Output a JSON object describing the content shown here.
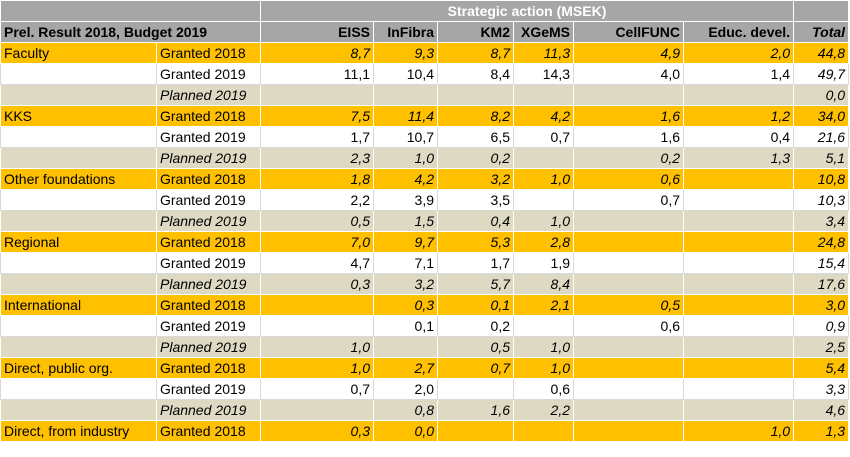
{
  "header": {
    "title": "Prel. Result 2018, Budget 2019",
    "group": "Strategic action (MSEK)",
    "columns": [
      "EISS",
      "InFibra",
      "KM2",
      "XGeMS",
      "CellFUNC",
      "Educ. devel.",
      "Total"
    ]
  },
  "rows": [
    {
      "cat": "Faculty",
      "type": "Granted 2018",
      "vals": [
        "8,7",
        "9,3",
        "8,7",
        "11,3",
        "4,9",
        "2,0"
      ],
      "total": "44,8"
    },
    {
      "cat": "",
      "type": "Granted 2019",
      "vals": [
        "11,1",
        "10,4",
        "8,4",
        "14,3",
        "4,0",
        "1,4"
      ],
      "total": "49,7"
    },
    {
      "cat": "",
      "type": "Planned 2019",
      "vals": [
        "",
        "",
        "",
        "",
        "",
        ""
      ],
      "total": "0,0"
    },
    {
      "cat": "KKS",
      "type": "Granted 2018",
      "vals": [
        "7,5",
        "11,4",
        "8,2",
        "4,2",
        "1,6",
        "1,2"
      ],
      "total": "34,0"
    },
    {
      "cat": "",
      "type": "Granted 2019",
      "vals": [
        "1,7",
        "10,7",
        "6,5",
        "0,7",
        "1,6",
        "0,4"
      ],
      "total": "21,6"
    },
    {
      "cat": "",
      "type": "Planned 2019",
      "vals": [
        "2,3",
        "1,0",
        "0,2",
        "",
        "0,2",
        "1,3"
      ],
      "total": "5,1"
    },
    {
      "cat": "Other foundations",
      "type": "Granted 2018",
      "vals": [
        "1,8",
        "4,2",
        "3,2",
        "1,0",
        "0,6",
        ""
      ],
      "total": "10,8"
    },
    {
      "cat": "",
      "type": "Granted 2019",
      "vals": [
        "2,2",
        "3,9",
        "3,5",
        "",
        "0,7",
        ""
      ],
      "total": "10,3"
    },
    {
      "cat": "",
      "type": "Planned 2019",
      "vals": [
        "0,5",
        "1,5",
        "0,4",
        "1,0",
        "",
        ""
      ],
      "total": "3,4"
    },
    {
      "cat": "Regional",
      "type": "Granted 2018",
      "vals": [
        "7,0",
        "9,7",
        "5,3",
        "2,8",
        "",
        ""
      ],
      "total": "24,8"
    },
    {
      "cat": "",
      "type": "Granted 2019",
      "vals": [
        "4,7",
        "7,1",
        "1,7",
        "1,9",
        "",
        ""
      ],
      "total": "15,4"
    },
    {
      "cat": "",
      "type": "Planned 2019",
      "vals": [
        "0,3",
        "3,2",
        "5,7",
        "8,4",
        "",
        ""
      ],
      "total": "17,6"
    },
    {
      "cat": "International",
      "type": "Granted 2018",
      "vals": [
        "",
        "0,3",
        "0,1",
        "2,1",
        "0,5",
        ""
      ],
      "total": "3,0"
    },
    {
      "cat": "",
      "type": "Granted 2019",
      "vals": [
        "",
        "0,1",
        "0,2",
        "",
        "0,6",
        ""
      ],
      "total": "0,9"
    },
    {
      "cat": "",
      "type": "Planned 2019",
      "vals": [
        "1,0",
        "",
        "0,5",
        "1,0",
        "",
        ""
      ],
      "total": "2,5"
    },
    {
      "cat": "Direct, public org.",
      "type": "Granted 2018",
      "vals": [
        "1,0",
        "2,7",
        "0,7",
        "1,0",
        "",
        ""
      ],
      "total": "5,4"
    },
    {
      "cat": "",
      "type": "Granted 2019",
      "vals": [
        "0,7",
        "2,0",
        "",
        "0,6",
        "",
        ""
      ],
      "total": "3,3"
    },
    {
      "cat": "",
      "type": "Planned 2019",
      "vals": [
        "",
        "0,8",
        "1,6",
        "2,2",
        "",
        ""
      ],
      "total": "4,6"
    },
    {
      "cat": "Direct, from industry",
      "type": "Granted 2018",
      "vals": [
        "0,3",
        "0,0",
        "",
        "",
        "",
        "1,0"
      ],
      "total": "1,3"
    }
  ],
  "colors": {
    "header_bg": "#a6a6a6",
    "granted_2018_bg": "#ffc000",
    "planned_2019_bg": "#ddd9c3",
    "granted_2019_bg": "#ffffff"
  }
}
